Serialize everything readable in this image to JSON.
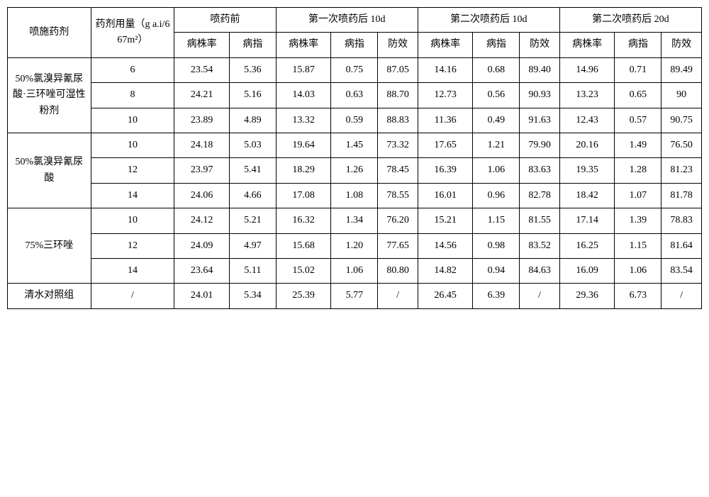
{
  "headers": {
    "agent": "喷施药剂",
    "dose": "药剂用量（g a.i/667m²）",
    "before": "喷药前",
    "after1_10d": "第一次喷药后 10d",
    "after2_10d": "第二次喷药后 10d",
    "after2_20d": "第二次喷药后 20d",
    "rate": "病株率",
    "index": "病指",
    "effect": "防效"
  },
  "agents": {
    "a1": "50%氯溴异氰尿酸·三环唑可湿性粉剂",
    "a2": "50%氯溴异氰尿酸",
    "a3": "75%三环唑",
    "a4": "清水对照组"
  },
  "rows": [
    {
      "dose": "6",
      "b_rate": "23.54",
      "b_idx": "5.36",
      "s1_rate": "15.87",
      "s1_idx": "0.75",
      "s1_eff": "87.05",
      "s2_rate": "14.16",
      "s2_idx": "0.68",
      "s2_eff": "89.40",
      "s3_rate": "14.96",
      "s3_idx": "0.71",
      "s3_eff": "89.49"
    },
    {
      "dose": "8",
      "b_rate": "24.21",
      "b_idx": "5.16",
      "s1_rate": "14.03",
      "s1_idx": "0.63",
      "s1_eff": "88.70",
      "s2_rate": "12.73",
      "s2_idx": "0.56",
      "s2_eff": "90.93",
      "s3_rate": "13.23",
      "s3_idx": "0.65",
      "s3_eff": "90"
    },
    {
      "dose": "10",
      "b_rate": "23.89",
      "b_idx": "4.89",
      "s1_rate": "13.32",
      "s1_idx": "0.59",
      "s1_eff": "88.83",
      "s2_rate": "11.36",
      "s2_idx": "0.49",
      "s2_eff": "91.63",
      "s3_rate": "12.43",
      "s3_idx": "0.57",
      "s3_eff": "90.75"
    },
    {
      "dose": "10",
      "b_rate": "24.18",
      "b_idx": "5.03",
      "s1_rate": "19.64",
      "s1_idx": "1.45",
      "s1_eff": "73.32",
      "s2_rate": "17.65",
      "s2_idx": "1.21",
      "s2_eff": "79.90",
      "s3_rate": "20.16",
      "s3_idx": "1.49",
      "s3_eff": "76.50"
    },
    {
      "dose": "12",
      "b_rate": "23.97",
      "b_idx": "5.41",
      "s1_rate": "18.29",
      "s1_idx": "1.26",
      "s1_eff": "78.45",
      "s2_rate": "16.39",
      "s2_idx": "1.06",
      "s2_eff": "83.63",
      "s3_rate": "19.35",
      "s3_idx": "1.28",
      "s3_eff": "81.23"
    },
    {
      "dose": "14",
      "b_rate": "24.06",
      "b_idx": "4.66",
      "s1_rate": "17.08",
      "s1_idx": "1.08",
      "s1_eff": "78.55",
      "s2_rate": "16.01",
      "s2_idx": "0.96",
      "s2_eff": "82.78",
      "s3_rate": "18.42",
      "s3_idx": "1.07",
      "s3_eff": "81.78"
    },
    {
      "dose": "10",
      "b_rate": "24.12",
      "b_idx": "5.21",
      "s1_rate": "16.32",
      "s1_idx": "1.34",
      "s1_eff": "76.20",
      "s2_rate": "15.21",
      "s2_idx": "1.15",
      "s2_eff": "81.55",
      "s3_rate": "17.14",
      "s3_idx": "1.39",
      "s3_eff": "78.83"
    },
    {
      "dose": "12",
      "b_rate": "24.09",
      "b_idx": "4.97",
      "s1_rate": "15.68",
      "s1_idx": "1.20",
      "s1_eff": "77.65",
      "s2_rate": "14.56",
      "s2_idx": "0.98",
      "s2_eff": "83.52",
      "s3_rate": "16.25",
      "s3_idx": "1.15",
      "s3_eff": "81.64"
    },
    {
      "dose": "14",
      "b_rate": "23.64",
      "b_idx": "5.11",
      "s1_rate": "15.02",
      "s1_idx": "1.06",
      "s1_eff": "80.80",
      "s2_rate": "14.82",
      "s2_idx": "0.94",
      "s2_eff": "84.63",
      "s3_rate": "16.09",
      "s3_idx": "1.06",
      "s3_eff": "83.54"
    },
    {
      "dose": "/",
      "b_rate": "24.01",
      "b_idx": "5.34",
      "s1_rate": "25.39",
      "s1_idx": "5.77",
      "s1_eff": "/",
      "s2_rate": "26.45",
      "s2_idx": "6.39",
      "s2_eff": "/",
      "s3_rate": "29.36",
      "s3_idx": "6.73",
      "s3_eff": "/"
    }
  ]
}
